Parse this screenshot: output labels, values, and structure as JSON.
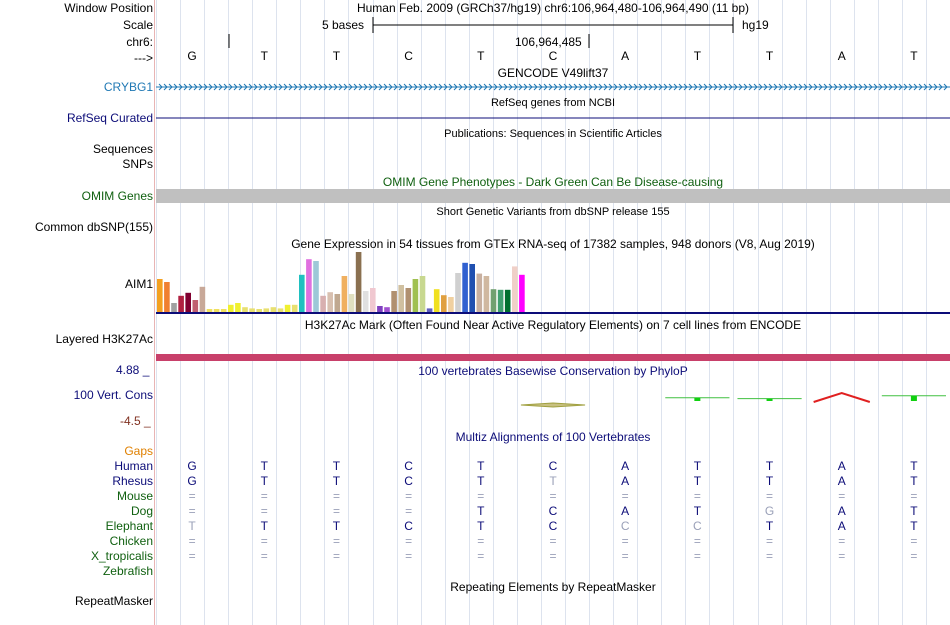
{
  "header": {
    "window_position_label": "Window Position",
    "window_position_value": "Human Feb. 2009 (GRCh37/hg19)   chr6:106,964,480-106,964,490 (11 bp)",
    "scale_label": "Scale",
    "scale_text": "5 bases",
    "assembly": "hg19",
    "chrom_label": "chr6:",
    "position_tick": "106,964,485",
    "strand_label": "--->"
  },
  "sequence": [
    "G",
    "T",
    "T",
    "C",
    "T",
    "C",
    "A",
    "T",
    "T",
    "A",
    "T"
  ],
  "tracks": {
    "gencode": {
      "title": "GENCODE V49lift37",
      "label": "CRYBG1",
      "color": "#1f78b4"
    },
    "refseq": {
      "title": "RefSeq genes from NCBI",
      "label": "RefSeq Curated",
      "color": "#0c0c78"
    },
    "publications": {
      "title": "Publications: Sequences in Scientific Articles",
      "label": "Sequences"
    },
    "snps_label": "SNPs",
    "omim": {
      "title": "OMIM Gene Phenotypes - Dark Green Can Be Disease-causing",
      "label": "OMIM Genes",
      "color": "#106010"
    },
    "dbsnp": {
      "title": "Short Genetic Variants from dbSNP release 155",
      "label": "Common dbSNP(155)"
    },
    "gtex": {
      "title": "Gene Expression in 54 tissues from GTEx RNA-seq of 17382 samples, 948 donors (V8, Aug 2019)",
      "label": "AIM1",
      "bars": [
        {
          "v": 0.55,
          "c": "#f4a020"
        },
        {
          "v": 0.5,
          "c": "#f08030"
        },
        {
          "v": 0.15,
          "c": "#a0a0a0"
        },
        {
          "v": 0.27,
          "c": "#b02040"
        },
        {
          "v": 0.32,
          "c": "#800030"
        },
        {
          "v": 0.2,
          "c": "#c06070"
        },
        {
          "v": 0.42,
          "c": "#c8a898"
        },
        {
          "v": 0.05,
          "c": "#f0e060"
        },
        {
          "v": 0.05,
          "c": "#f0e060"
        },
        {
          "v": 0.05,
          "c": "#f0e060"
        },
        {
          "v": 0.12,
          "c": "#f0f030"
        },
        {
          "v": 0.15,
          "c": "#f0f030"
        },
        {
          "v": 0.08,
          "c": "#e8e070"
        },
        {
          "v": 0.06,
          "c": "#e8e070"
        },
        {
          "v": 0.05,
          "c": "#e8e070"
        },
        {
          "v": 0.06,
          "c": "#e8e070"
        },
        {
          "v": 0.08,
          "c": "#e8e070"
        },
        {
          "v": 0.06,
          "c": "#e8e070"
        },
        {
          "v": 0.12,
          "c": "#f0f030"
        },
        {
          "v": 0.12,
          "c": "#e8e070"
        },
        {
          "v": 0.62,
          "c": "#20c0c0"
        },
        {
          "v": 0.88,
          "c": "#e070e0"
        },
        {
          "v": 0.85,
          "c": "#9ec8d8"
        },
        {
          "v": 0.27,
          "c": "#d8b0b0"
        },
        {
          "v": 0.33,
          "c": "#d8c0b0"
        },
        {
          "v": 0.3,
          "c": "#c0a890"
        },
        {
          "v": 0.6,
          "c": "#f0b060"
        },
        {
          "v": 0.3,
          "c": "#e0e0c0"
        },
        {
          "v": 1.0,
          "c": "#8a7050"
        },
        {
          "v": 0.35,
          "c": "#e0e0e0"
        },
        {
          "v": 0.4,
          "c": "#f0c8d0"
        },
        {
          "v": 0.1,
          "c": "#8040c0"
        },
        {
          "v": 0.08,
          "c": "#a050d0"
        },
        {
          "v": 0.35,
          "c": "#b09070"
        },
        {
          "v": 0.45,
          "c": "#d0c0a0"
        },
        {
          "v": 0.4,
          "c": "#b09070"
        },
        {
          "v": 0.55,
          "c": "#a0c050"
        },
        {
          "v": 0.6,
          "c": "#c8d890"
        },
        {
          "v": 0.06,
          "c": "#6060c0"
        },
        {
          "v": 0.38,
          "c": "#f0e020"
        },
        {
          "v": 0.28,
          "c": "#e0a040"
        },
        {
          "v": 0.25,
          "c": "#f0d0a0"
        },
        {
          "v": 0.65,
          "c": "#d0d0d0"
        },
        {
          "v": 0.82,
          "c": "#3060d0"
        },
        {
          "v": 0.8,
          "c": "#2050b0"
        },
        {
          "v": 0.64,
          "c": "#c8b0a0"
        },
        {
          "v": 0.6,
          "c": "#d0b8a0"
        },
        {
          "v": 0.38,
          "c": "#70a070"
        },
        {
          "v": 0.37,
          "c": "#40a070"
        },
        {
          "v": 0.37,
          "c": "#007030"
        },
        {
          "v": 0.76,
          "c": "#f0d0c8"
        },
        {
          "v": 0.62,
          "c": "#ff00ff"
        }
      ]
    },
    "h3k27ac": {
      "title": "H3K27Ac Mark (Often Found Near Active Regulatory Elements) on 7 cell lines from ENCODE",
      "label": "Layered H3K27Ac",
      "color": "#c8406a"
    },
    "phylop": {
      "title": "100 vertebrates Basewise Conservation by PhyloP",
      "label": "100 Vert. Cons",
      "max_label": "4.88 _",
      "min_label": "-4.5 _",
      "scores": [
        0,
        0,
        0,
        0,
        0,
        -0.5,
        0,
        0.8,
        0.6,
        2.0,
        1.3
      ]
    },
    "multiz": {
      "title": "Multiz Alignments of 100 Vertebrates",
      "gaps_label": "Gaps",
      "species": [
        {
          "name": "Human",
          "row": [
            "G",
            "T",
            "T",
            "C",
            "T",
            "C",
            "A",
            "T",
            "T",
            "A",
            "T"
          ]
        },
        {
          "name": "Rhesus",
          "row": [
            "G",
            "T",
            "T",
            "C",
            "T",
            "T*",
            "A",
            "T",
            "T",
            "A",
            "T"
          ]
        },
        {
          "name": "Mouse",
          "row": [
            "=",
            "=",
            "=",
            "=",
            "=",
            "=",
            "=",
            "=",
            "=",
            "=",
            "="
          ]
        },
        {
          "name": "Dog",
          "row": [
            "=",
            "=",
            "=",
            "=",
            "T",
            "C",
            "A",
            "T",
            "G*",
            "A",
            "T"
          ]
        },
        {
          "name": "Elephant",
          "row": [
            "T*",
            "T",
            "T",
            "C",
            "T",
            "C",
            "C*",
            "C*",
            "T",
            "A",
            "T"
          ]
        },
        {
          "name": "Chicken",
          "row": [
            "=",
            "=",
            "=",
            "=",
            "=",
            "=",
            "=",
            "=",
            "=",
            "=",
            "="
          ]
        },
        {
          "name": "X_tropicalis",
          "row": [
            "=",
            "=",
            "=",
            "=",
            "=",
            "=",
            "=",
            "=",
            "=",
            "=",
            "="
          ]
        },
        {
          "name": "Zebrafish",
          "row": [
            "",
            "",
            "",
            "",
            "",
            "",
            "",
            "",
            "",
            "",
            ""
          ]
        }
      ]
    },
    "repeatmasker": {
      "title": "Repeating Elements by RepeatMasker",
      "label": "RepeatMasker"
    }
  },
  "colors": {
    "species_label": "#0c0c78",
    "elephant_label": "#106010",
    "gaps_label": "#e08000",
    "dim_base": "#9aa0b8"
  }
}
